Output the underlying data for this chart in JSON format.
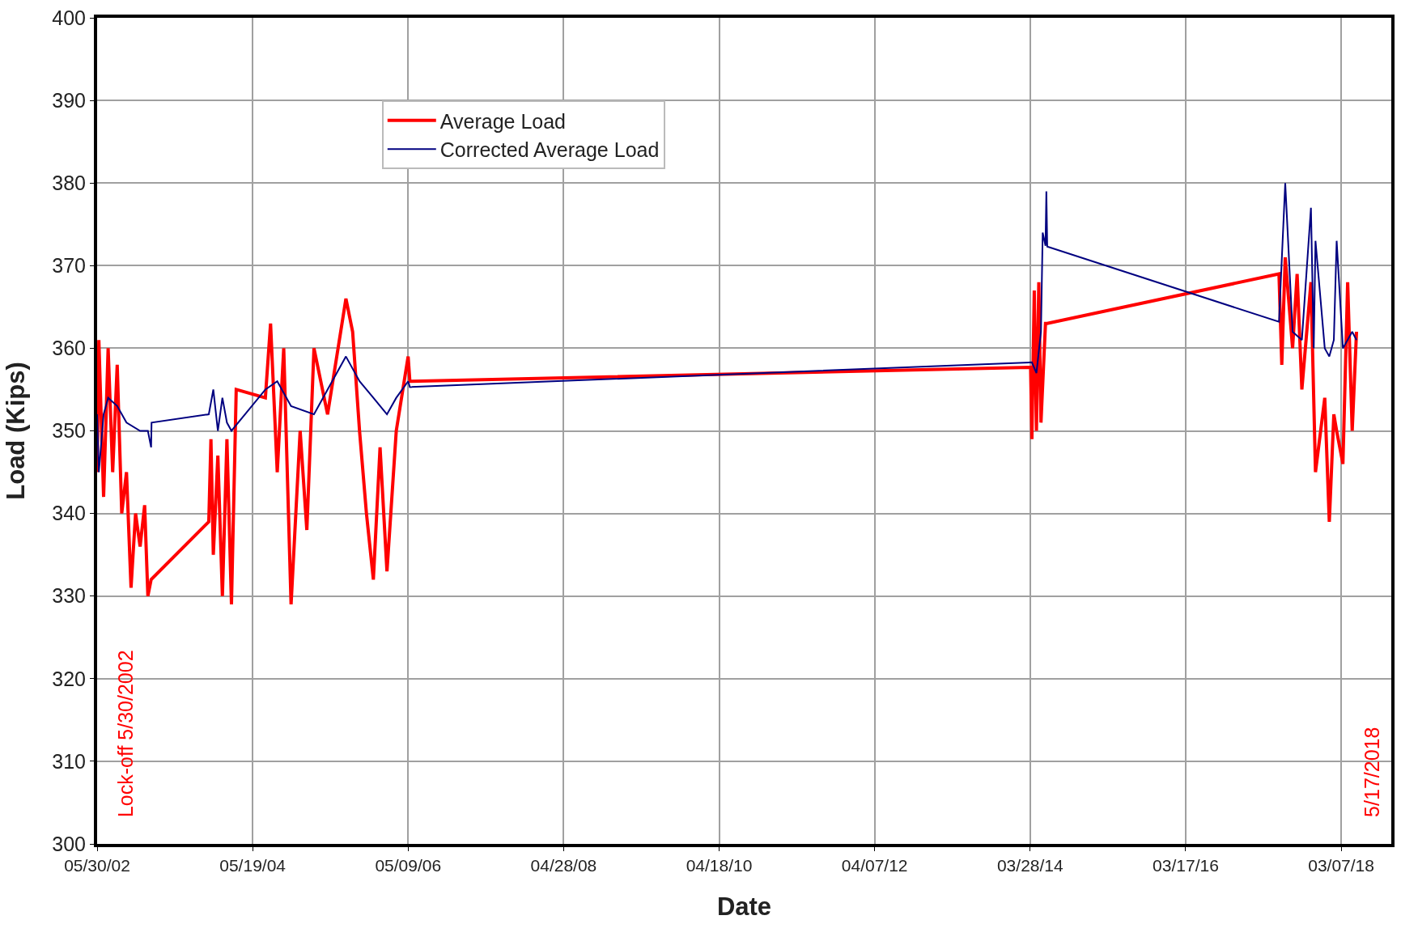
{
  "chart_data": {
    "type": "line",
    "xlabel": "Date",
    "ylabel": "Load (Kips)",
    "xlim": [
      "2002-05-30",
      "2018-10-25"
    ],
    "ylim": [
      300,
      400
    ],
    "xticks": [
      {
        "value": "2002-05-30",
        "label": "05/30/02"
      },
      {
        "value": "2004-05-19",
        "label": "05/19/04"
      },
      {
        "value": "2006-05-09",
        "label": "05/09/06"
      },
      {
        "value": "2008-04-28",
        "label": "04/28/08"
      },
      {
        "value": "2010-04-18",
        "label": "04/18/10"
      },
      {
        "value": "2012-04-07",
        "label": "04/07/12"
      },
      {
        "value": "2014-03-28",
        "label": "03/28/14"
      },
      {
        "value": "2016-03-17",
        "label": "03/17/16"
      },
      {
        "value": "2018-03-07",
        "label": "03/07/18"
      }
    ],
    "yticks": [
      300,
      310,
      320,
      330,
      340,
      350,
      360,
      370,
      380,
      390,
      400
    ],
    "grid": true,
    "legend": "top left",
    "marker": "none",
    "line_style": "solid",
    "series": [
      {
        "name": "Average Load",
        "color": "#ff0000",
        "x": [
          "2002-05-30",
          "2002-06-07",
          "2002-06-29",
          "2002-07-20",
          "2002-08-10",
          "2002-08-31",
          "2002-09-21",
          "2002-10-13",
          "2002-11-03",
          "2002-11-24",
          "2002-12-15",
          "2003-01-05",
          "2003-01-20",
          "2003-02-04",
          "2003-10-29",
          "2003-11-08",
          "2003-11-19",
          "2003-12-10",
          "2003-12-31",
          "2004-01-21",
          "2004-02-11",
          "2004-03-04",
          "2004-07-17",
          "2004-08-10",
          "2004-09-10",
          "2004-10-10",
          "2004-11-13",
          "2004-12-25",
          "2005-01-25",
          "2005-02-27",
          "2005-05-01",
          "2005-07-25",
          "2005-08-25",
          "2005-09-26",
          "2005-10-28",
          "2005-11-29",
          "2005-12-30",
          "2006-01-31",
          "2006-03-15",
          "2006-05-09",
          "2006-05-17",
          "2014-03-30",
          "2014-04-05",
          "2014-04-16",
          "2014-04-26",
          "2014-05-07",
          "2014-05-17",
          "2014-06-07",
          "2014-06-15",
          "2017-05-23",
          "2017-06-05",
          "2017-06-21",
          "2017-07-25",
          "2017-08-15",
          "2017-09-06",
          "2017-10-18",
          "2017-11-08",
          "2017-12-21",
          "2018-01-11",
          "2018-02-01",
          "2018-02-14",
          "2018-03-15",
          "2018-04-06",
          "2018-04-27",
          "2018-05-17"
        ],
        "values": [
          345,
          361,
          342,
          360,
          345,
          358,
          340,
          345,
          331,
          340,
          336,
          341,
          330,
          332,
          339,
          349,
          335,
          347,
          330,
          349,
          329,
          355,
          354,
          363,
          345,
          360,
          329,
          350,
          338,
          360,
          352,
          366,
          362,
          350,
          340,
          332,
          348,
          333,
          350,
          359,
          356,
          357.7,
          349,
          367,
          350,
          368,
          351,
          363,
          363,
          369,
          358,
          371,
          360,
          369,
          355,
          368,
          345,
          354,
          339,
          352,
          350,
          346,
          368,
          350,
          362
        ]
      },
      {
        "name": "Corrected Average Load",
        "color": "#000080",
        "x": [
          "2002-05-30",
          "2002-06-07",
          "2002-06-29",
          "2002-07-20",
          "2002-08-31",
          "2002-10-13",
          "2002-12-15",
          "2003-01-20",
          "2003-02-04",
          "2003-02-06",
          "2003-10-29",
          "2003-11-19",
          "2003-12-10",
          "2003-12-31",
          "2004-01-21",
          "2004-02-11",
          "2004-07-17",
          "2004-09-10",
          "2004-11-13",
          "2005-02-27",
          "2005-05-01",
          "2005-07-25",
          "2005-09-26",
          "2005-11-29",
          "2006-01-31",
          "2006-03-15",
          "2006-05-09",
          "2006-05-17",
          "2014-04-05",
          "2014-04-26",
          "2014-05-17",
          "2014-05-25",
          "2014-06-07",
          "2014-06-11",
          "2014-06-15",
          "2017-05-23",
          "2017-06-21",
          "2017-07-25",
          "2017-09-06",
          "2017-10-18",
          "2017-10-31",
          "2017-11-08",
          "2017-12-21",
          "2018-01-11",
          "2018-02-01",
          "2018-02-14",
          "2018-03-15",
          "2018-04-27",
          "2018-05-17"
        ],
        "values": [
          352,
          345,
          352,
          354,
          353,
          351,
          350,
          350,
          348,
          351,
          352,
          355,
          350,
          354,
          351,
          350,
          355,
          356,
          353,
          352,
          355,
          359,
          356,
          354,
          352,
          354,
          356,
          355.3,
          358.3,
          357,
          362,
          374,
          372.4,
          379,
          372.3,
          363.2,
          380,
          362,
          361,
          377,
          360,
          373,
          360,
          359,
          361,
          373,
          360,
          362,
          361
        ]
      }
    ],
    "annotations": [
      "Lock-off 5/30/2002",
      "5/17/2018"
    ]
  }
}
